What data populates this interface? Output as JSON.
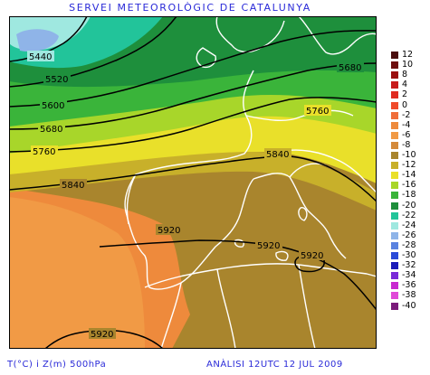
{
  "header": {
    "title": "SERVEI METEOROLÒGIC DE CATALUNYA"
  },
  "footer": {
    "left": "T(°C) i Z(m) 500hPa",
    "right": "ANÀLISI 12UTC 12 JUL 2009"
  },
  "contour_labels": [
    {
      "text": "5440"
    },
    {
      "text": "5520"
    },
    {
      "text": "5600"
    },
    {
      "text": "5680"
    },
    {
      "text": "5680"
    },
    {
      "text": "5760"
    },
    {
      "text": "5760"
    },
    {
      "text": "5840"
    },
    {
      "text": "5840"
    },
    {
      "text": "5920"
    },
    {
      "text": "5920"
    },
    {
      "text": "5920"
    },
    {
      "text": "5920"
    }
  ],
  "legend": [
    {
      "label": "12",
      "color": "#4a0d0d"
    },
    {
      "label": "10",
      "color": "#6e0d0d"
    },
    {
      "label": "8",
      "color": "#9b0e0e"
    },
    {
      "label": "4",
      "color": "#c81a1a"
    },
    {
      "label": "2",
      "color": "#e02a20"
    },
    {
      "label": "0",
      "color": "#f04a2a"
    },
    {
      "label": "-2",
      "color": "#f06e3a"
    },
    {
      "label": "-4",
      "color": "#ee8a3c"
    },
    {
      "label": "-6",
      "color": "#f19a45"
    },
    {
      "label": "-8",
      "color": "#d48a3a"
    },
    {
      "label": "-10",
      "color": "#a9852d"
    },
    {
      "label": "-12",
      "color": "#c8b02a"
    },
    {
      "label": "-14",
      "color": "#e9e02a"
    },
    {
      "label": "-16",
      "color": "#a8d62a"
    },
    {
      "label": "-18",
      "color": "#3ab43a"
    },
    {
      "label": "-20",
      "color": "#1e8f3c"
    },
    {
      "label": "-22",
      "color": "#22c49a"
    },
    {
      "label": "-24",
      "color": "#9fe8e0"
    },
    {
      "label": "-26",
      "color": "#8fb4e8"
    },
    {
      "label": "-28",
      "color": "#5a82e0"
    },
    {
      "label": "-30",
      "color": "#2a4ad8"
    },
    {
      "label": "-32",
      "color": "#1a1ab8"
    },
    {
      "label": "-34",
      "color": "#7a2ad8"
    },
    {
      "label": "-36",
      "color": "#c82ad0"
    },
    {
      "label": "-38",
      "color": "#e04ad8"
    },
    {
      "label": "-40",
      "color": "#7a1a7a"
    }
  ]
}
